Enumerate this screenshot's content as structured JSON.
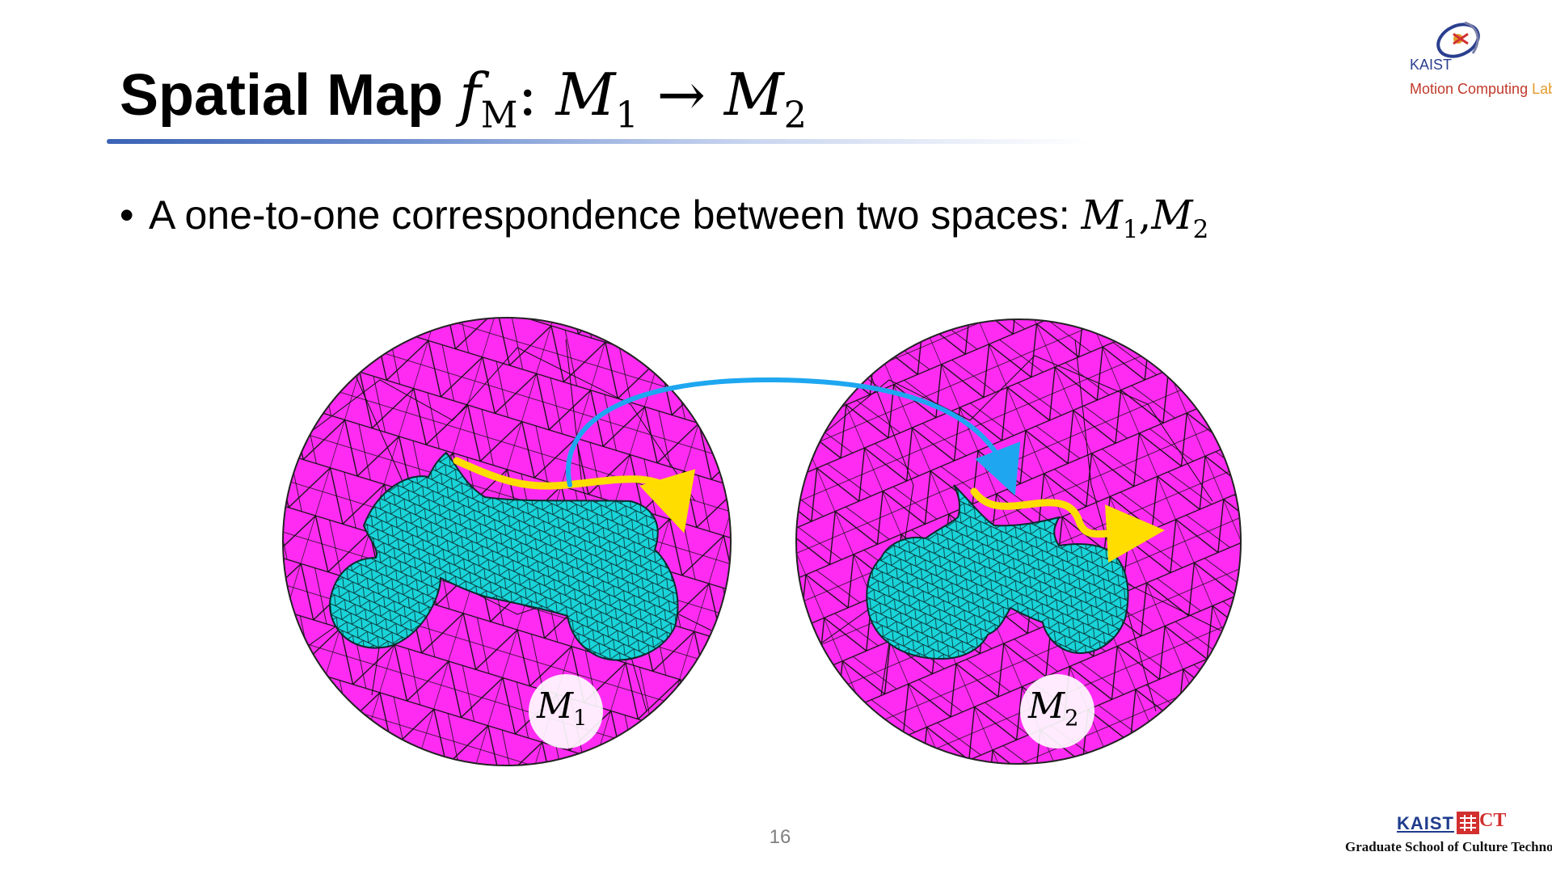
{
  "title": {
    "plain": "Spatial Map",
    "f": "f",
    "f_sub": "M",
    "colon": ":",
    "domain": "M",
    "domain_sub": "1",
    "arrow": "→",
    "codomain": "M",
    "codomain_sub": "2"
  },
  "bullet": {
    "marker": "•",
    "text": "A one-to-one correspondence between two spaces: ",
    "m1": "M",
    "m1_sub": "1",
    "comma": ",",
    "m2": "M",
    "m2_sub": "2"
  },
  "figure": {
    "left_label": {
      "symbol": "M",
      "sub": "1"
    },
    "right_label": {
      "symbol": "M",
      "sub": "2"
    },
    "colors": {
      "outer_mesh": "#ff2bf2",
      "inner_mesh": "#19d4d9",
      "mesh_lines": "#111111",
      "yellow_arrow": "#ffdd00",
      "blue_arrow": "#1ea7f0"
    }
  },
  "page_number": "16",
  "logos": {
    "top": {
      "org": "KAIST",
      "lab_main": "Motion Computing ",
      "lab_end": "Lab"
    },
    "bottom": {
      "org": "KAIST",
      "ct": "CT",
      "school": "Graduate School of Culture Technology"
    }
  }
}
